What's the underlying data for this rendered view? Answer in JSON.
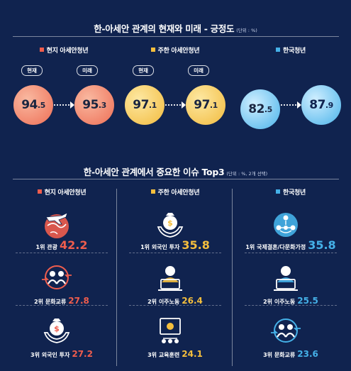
{
  "colors": {
    "local": "#ef5d4d",
    "korea_res": "#f4be3d",
    "korean": "#45b1e8",
    "bg": "#10234f"
  },
  "section1": {
    "title": "한-아세안 관계의 현재와 미래 - 긍정도",
    "unit": "(단위 : %)"
  },
  "section2": {
    "title": "한-아세안 관계에서 중요한 이슈 Top3",
    "unit": "(단위 : %, 2개 선택)"
  },
  "tags": {
    "now": "현재",
    "future": "미래"
  },
  "chart_data": [
    {
      "type": "bar",
      "title": "한-아세안 관계의 현재와 미래 - 긍정도",
      "unit": "%",
      "categories": [
        "현재",
        "미래"
      ],
      "series": [
        {
          "name": "현지 아세안청년",
          "values": [
            94.5,
            95.3
          ]
        },
        {
          "name": "주한 아세안청년",
          "values": [
            97.1,
            97.1
          ]
        },
        {
          "name": "한국청년",
          "values": [
            82.5,
            87.9
          ]
        }
      ]
    },
    {
      "type": "table",
      "title": "한-아세안 관계에서 중요한 이슈 Top3",
      "unit": "%",
      "groups": [
        {
          "name": "현지 아세안청년",
          "items": [
            {
              "rank": "1위",
              "label": "관광",
              "value": 42.2,
              "icon": "plane-globe-icon"
            },
            {
              "rank": "2위",
              "label": "문화교류",
              "value": 27.8,
              "icon": "people-exchange-icon"
            },
            {
              "rank": "3위",
              "label": "외국인 투자",
              "value": 27.2,
              "icon": "money-bag-hand-icon"
            }
          ]
        },
        {
          "name": "주한 아세안청년",
          "items": [
            {
              "rank": "1위",
              "label": "외국인 투자",
              "value": 35.8,
              "icon": "money-bag-hand-icon"
            },
            {
              "rank": "2위",
              "label": "이주노동",
              "value": 26.4,
              "icon": "worker-laptop-icon"
            },
            {
              "rank": "3위",
              "label": "교육훈련",
              "value": 24.1,
              "icon": "training-board-icon"
            }
          ]
        },
        {
          "name": "한국청년",
          "items": [
            {
              "rank": "1위",
              "label": "국제결혼/다문화가정",
              "value": 35.8,
              "icon": "family-network-icon"
            },
            {
              "rank": "2위",
              "label": "이주노동",
              "value": 25.5,
              "icon": "worker-laptop-icon"
            },
            {
              "rank": "3위",
              "label": "문화교류",
              "value": 23.6,
              "icon": "people-exchange-icon"
            }
          ]
        }
      ]
    }
  ]
}
